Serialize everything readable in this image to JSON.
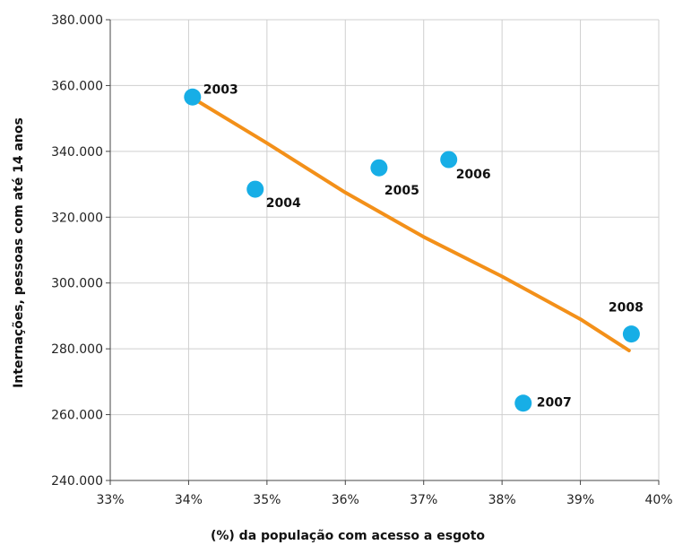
{
  "chart_data": {
    "type": "scatter",
    "title": "",
    "xlabel": "(%) da população com acesso a esgoto",
    "ylabel": "Internações, pessoas com até 14 anos",
    "xlim": [
      33,
      40
    ],
    "ylim": [
      240000,
      380000
    ],
    "x_ticks": [
      33,
      34,
      35,
      36,
      37,
      38,
      39,
      40
    ],
    "x_tick_labels": [
      "33%",
      "34%",
      "35%",
      "36%",
      "37%",
      "38%",
      "39%",
      "40%"
    ],
    "y_ticks": [
      240000,
      260000,
      280000,
      300000,
      320000,
      340000,
      360000,
      380000
    ],
    "y_tick_labels": [
      "240.000",
      "260.000",
      "280.000",
      "300.000",
      "320.000",
      "340.000",
      "360.000",
      "380.000"
    ],
    "grid": true,
    "points": [
      {
        "label": "2003",
        "x": 34.05,
        "y": 356500
      },
      {
        "label": "2004",
        "x": 34.85,
        "y": 328500
      },
      {
        "label": "2005",
        "x": 36.43,
        "y": 335000
      },
      {
        "label": "2006",
        "x": 37.32,
        "y": 337500
      },
      {
        "label": "2007",
        "x": 38.27,
        "y": 263500
      },
      {
        "label": "2008",
        "x": 39.65,
        "y": 284500
      }
    ],
    "trend_line": {
      "x": [
        34.1,
        35.0,
        36.0,
        37.0,
        38.0,
        39.0,
        39.62
      ],
      "y": [
        355500,
        342500,
        327500,
        314000,
        302000,
        289000,
        279500
      ]
    },
    "colors": {
      "point": "#17AEE6",
      "trend": "#F39019",
      "grid": "#cfcfcf",
      "axis": "#444444"
    }
  }
}
